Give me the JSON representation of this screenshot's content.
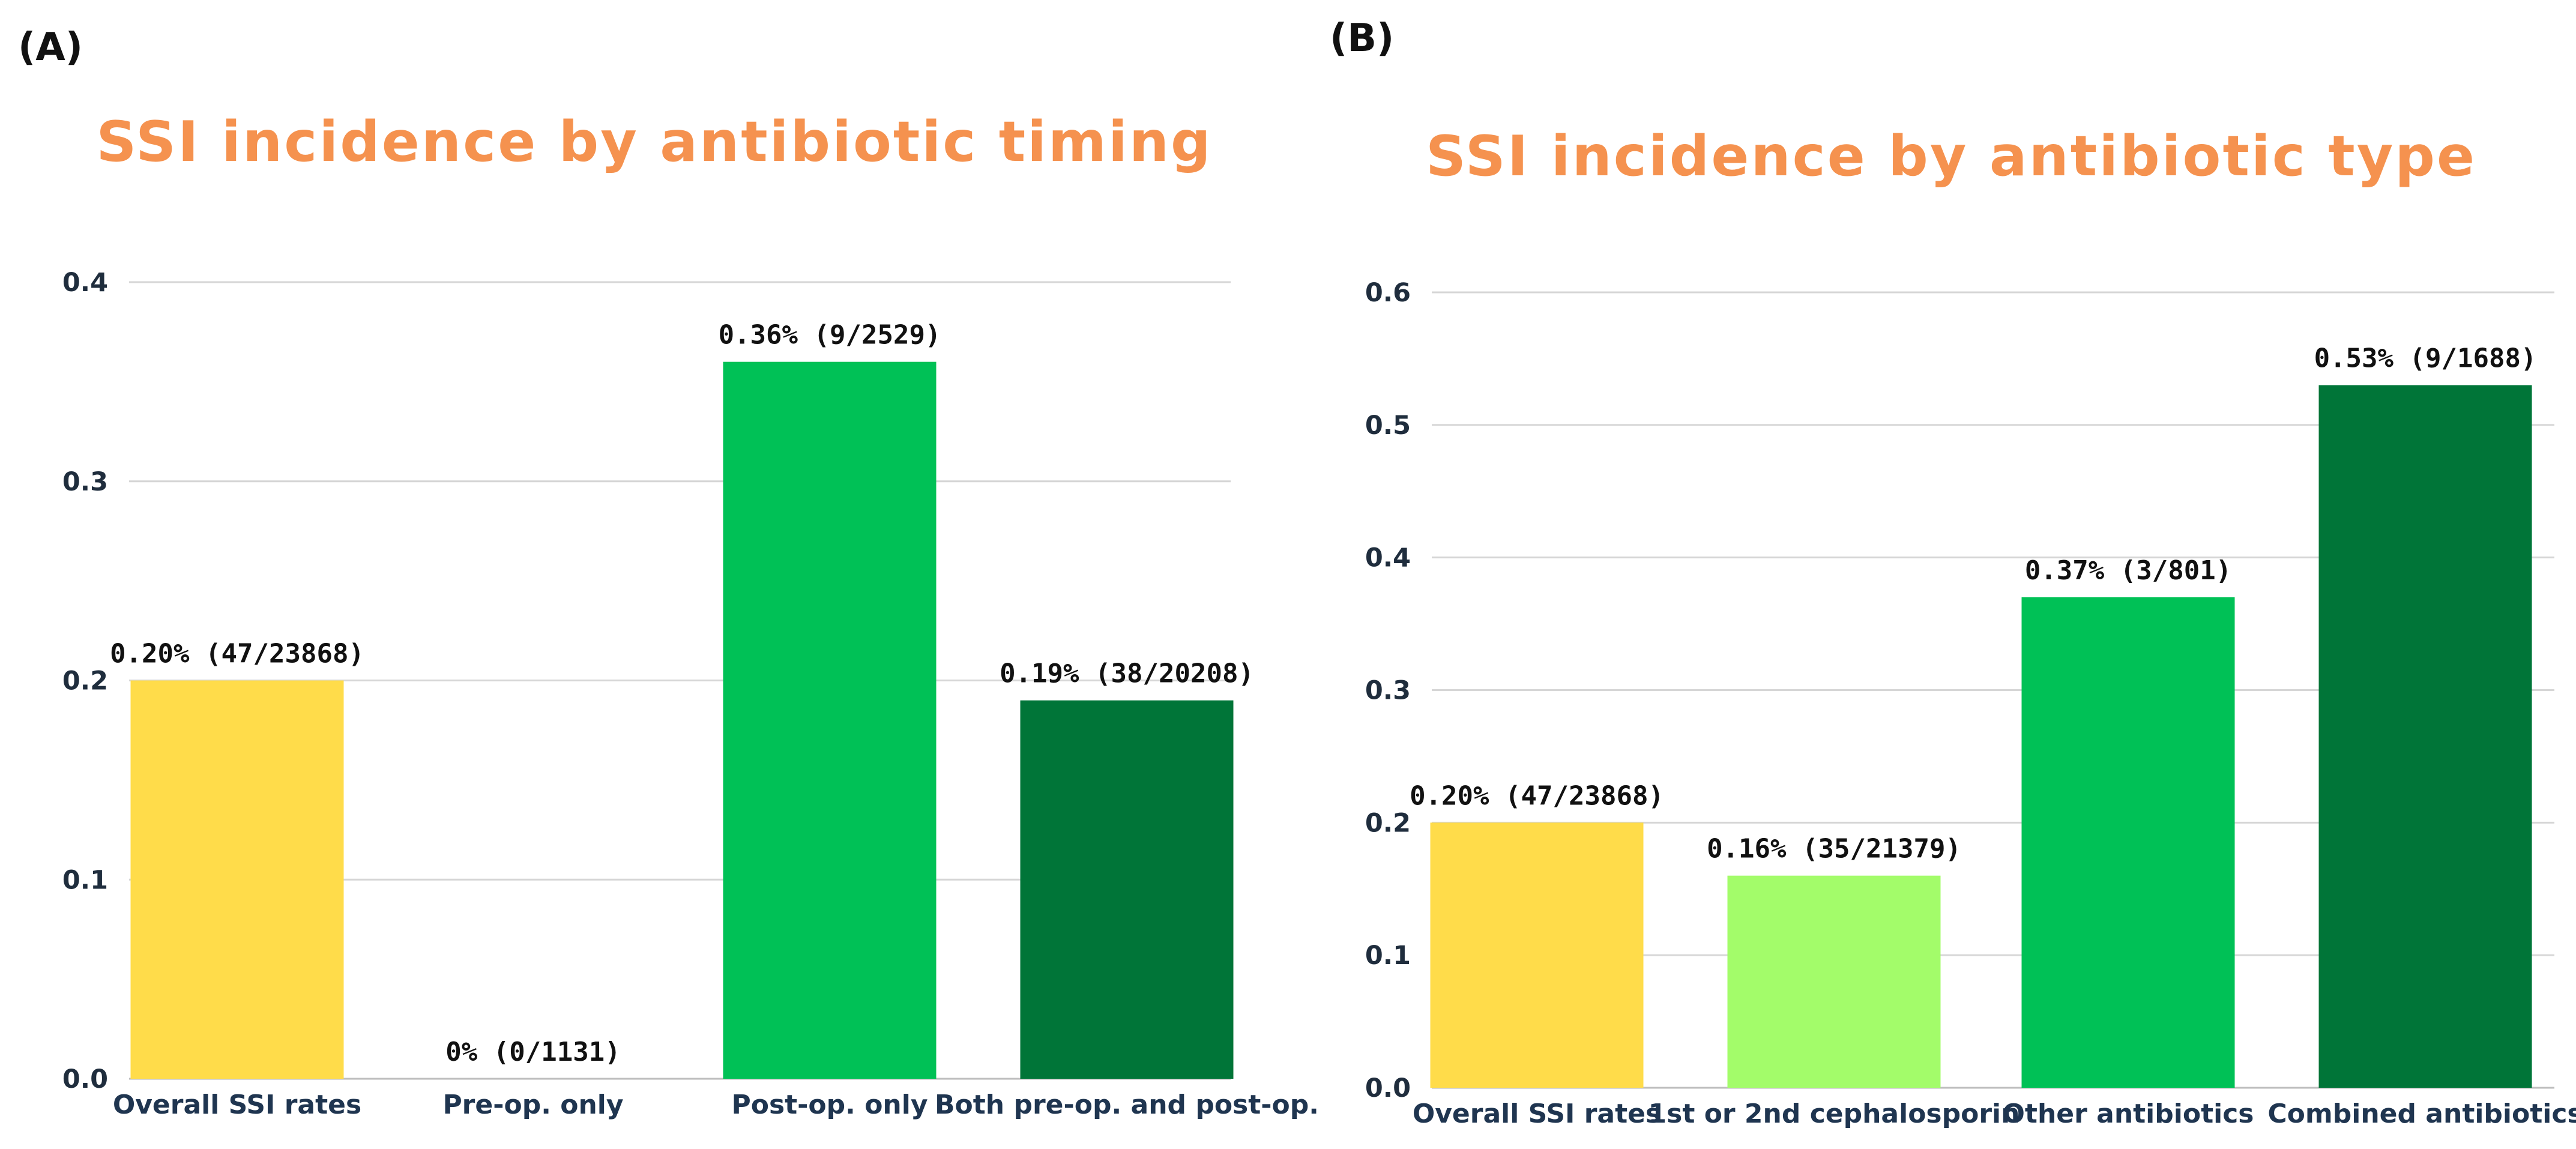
{
  "colors": {
    "title": "#f5924f",
    "overall": "#ffdc4a",
    "light_green": "#a3fc6a",
    "green": "#00c156",
    "dark_green": "#007538",
    "grid": "#d6d6d6",
    "axis_text": "#1f2d3d"
  },
  "chart_data": [
    {
      "panel": "(A)",
      "type": "bar",
      "title": "SSI incidence by antibiotic timing",
      "xlabel": "",
      "ylabel": "",
      "ylim": [
        0,
        0.4
      ],
      "yticks": [
        "0.0",
        "0.1",
        "0.2",
        "0.3",
        "0.4"
      ],
      "grid": true,
      "categories": [
        "Overall SSI rates",
        "Pre-op. only",
        "Post-op. only",
        "Both pre-op. and post-op."
      ],
      "values": [
        0.2,
        0,
        0.36,
        0.19
      ],
      "data_labels": [
        "0.20% (47/23868)",
        "0% (0/1131)",
        "0.36% (9/2529)",
        "0.19% (38/20208)"
      ],
      "bar_colors": [
        "#ffdc4a",
        "#ffdc4a",
        "#00c156",
        "#007538"
      ]
    },
    {
      "panel": "(B)",
      "type": "bar",
      "title": "SSI incidence by antibiotic type",
      "xlabel": "",
      "ylabel": "",
      "ylim": [
        0,
        0.6
      ],
      "yticks": [
        "0.0",
        "0.1",
        "0.2",
        "0.3",
        "0.4",
        "0.5",
        "0.6"
      ],
      "grid": true,
      "categories": [
        "Overall SSI rates",
        "1st or 2nd cephalosporin",
        "Other antibiotics",
        "Combined antibiotics"
      ],
      "values": [
        0.2,
        0.16,
        0.37,
        0.53
      ],
      "data_labels": [
        "0.20% (47/23868)",
        "0.16% (35/21379)",
        "0.37% (3/801)",
        "0.53% (9/1688)"
      ],
      "bar_colors": [
        "#ffdc4a",
        "#a3fc6a",
        "#00c156",
        "#007538"
      ]
    }
  ]
}
